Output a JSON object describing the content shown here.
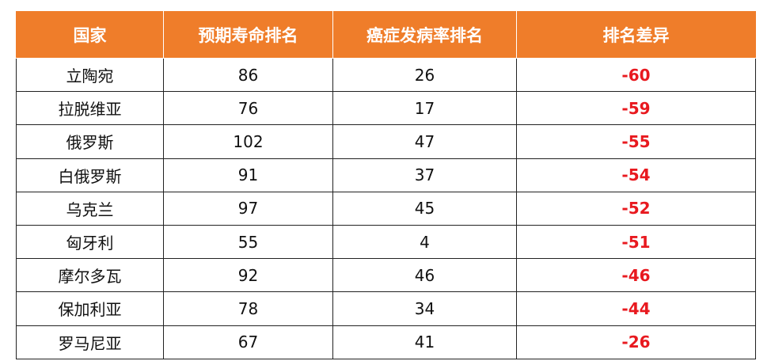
{
  "table": {
    "headers": [
      "国家",
      "预期寿命排名",
      "癌症发病率排名",
      "排名差异"
    ],
    "rows": [
      [
        "立陶宛",
        "86",
        "26",
        "-60"
      ],
      [
        "拉脱维亚",
        "76",
        "17",
        "-59"
      ],
      [
        "俄罗斯",
        "102",
        "47",
        "-55"
      ],
      [
        "白俄罗斯",
        "91",
        "37",
        "-54"
      ],
      [
        "乌克兰",
        "97",
        "45",
        "-52"
      ],
      [
        "匈牙利",
        "55",
        "4",
        "-51"
      ],
      [
        "摩尔多瓦",
        "92",
        "46",
        "-46"
      ],
      [
        "保加利亚",
        "78",
        "34",
        "-44"
      ],
      [
        "罗马尼亚",
        "67",
        "41",
        "-26"
      ]
    ]
  },
  "colors": {
    "header_bg": "#ef7d2a",
    "header_text": "#ffffff",
    "diff_text": "#e8191f"
  }
}
